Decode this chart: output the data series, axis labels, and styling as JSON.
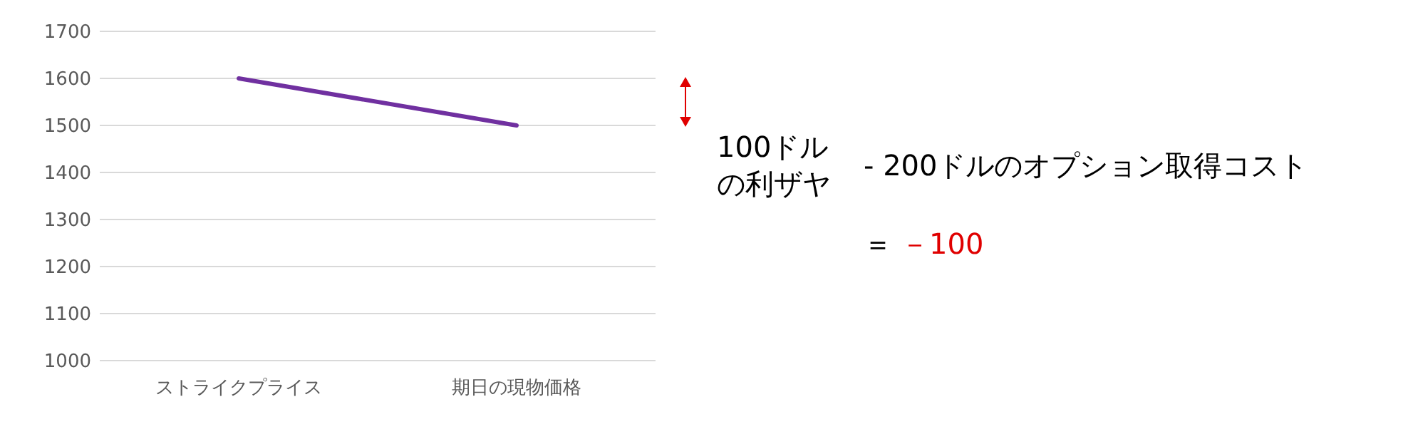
{
  "chart_data": {
    "type": "line",
    "categories": [
      "ストライクプライス",
      "期日の現物価格"
    ],
    "series": [
      {
        "color": "#7030a0",
        "values": [
          1600,
          1500
        ]
      }
    ],
    "ylim": [
      1000,
      1700
    ],
    "yticks": [
      1000,
      1100,
      1200,
      1300,
      1400,
      1500,
      1600,
      1700
    ],
    "grid": "y",
    "marker": "none",
    "annotations": [
      "100ドルの利ザヤ",
      "- 200ドルのオプション取得コスト",
      "＝",
      "－100"
    ]
  }
}
